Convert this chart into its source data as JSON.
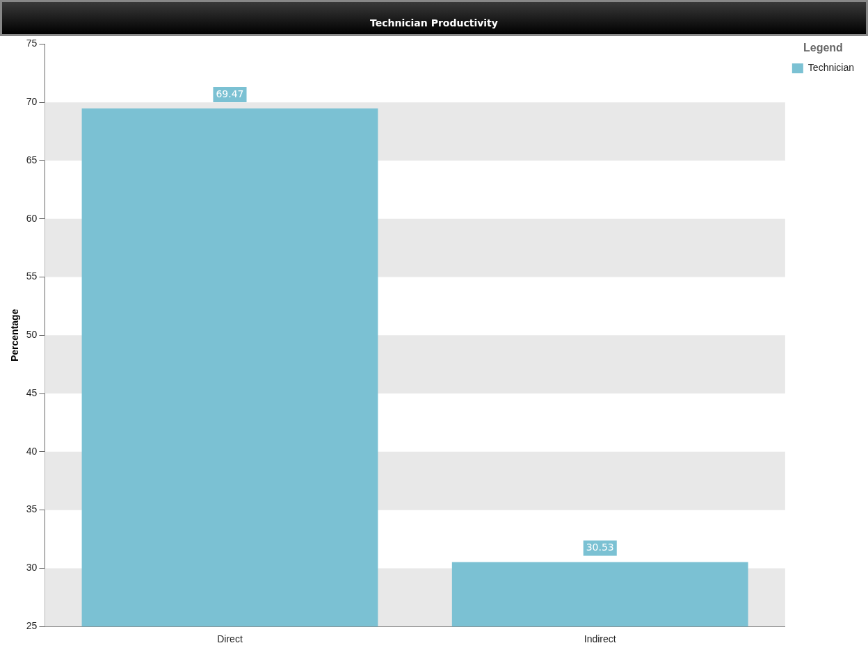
{
  "chart_data": {
    "type": "bar",
    "title": "Technician Productivity",
    "ylabel": "Percentage",
    "legend_title": "Legend",
    "categories": [
      "Direct",
      "Indirect"
    ],
    "series": [
      {
        "name": "Technician",
        "color": "#7bc1d3",
        "values": [
          69.47,
          30.53
        ]
      }
    ],
    "ylim": [
      25,
      75
    ],
    "yticks": [
      25,
      30,
      35,
      40,
      45,
      50,
      55,
      60,
      65,
      70,
      75
    ],
    "bands": [
      {
        "axis": "y",
        "from": 25,
        "to": 30,
        "color": "#e8e8e8"
      },
      {
        "axis": "y",
        "from": 35,
        "to": 40,
        "color": "#e8e8e8"
      },
      {
        "axis": "y",
        "from": 45,
        "to": 50,
        "color": "#e8e8e8"
      },
      {
        "axis": "y",
        "from": 55,
        "to": 60,
        "color": "#e8e8e8"
      },
      {
        "axis": "y",
        "from": 65,
        "to": 70,
        "color": "#e8e8e8"
      }
    ],
    "legend": "right",
    "data_labels": true
  }
}
